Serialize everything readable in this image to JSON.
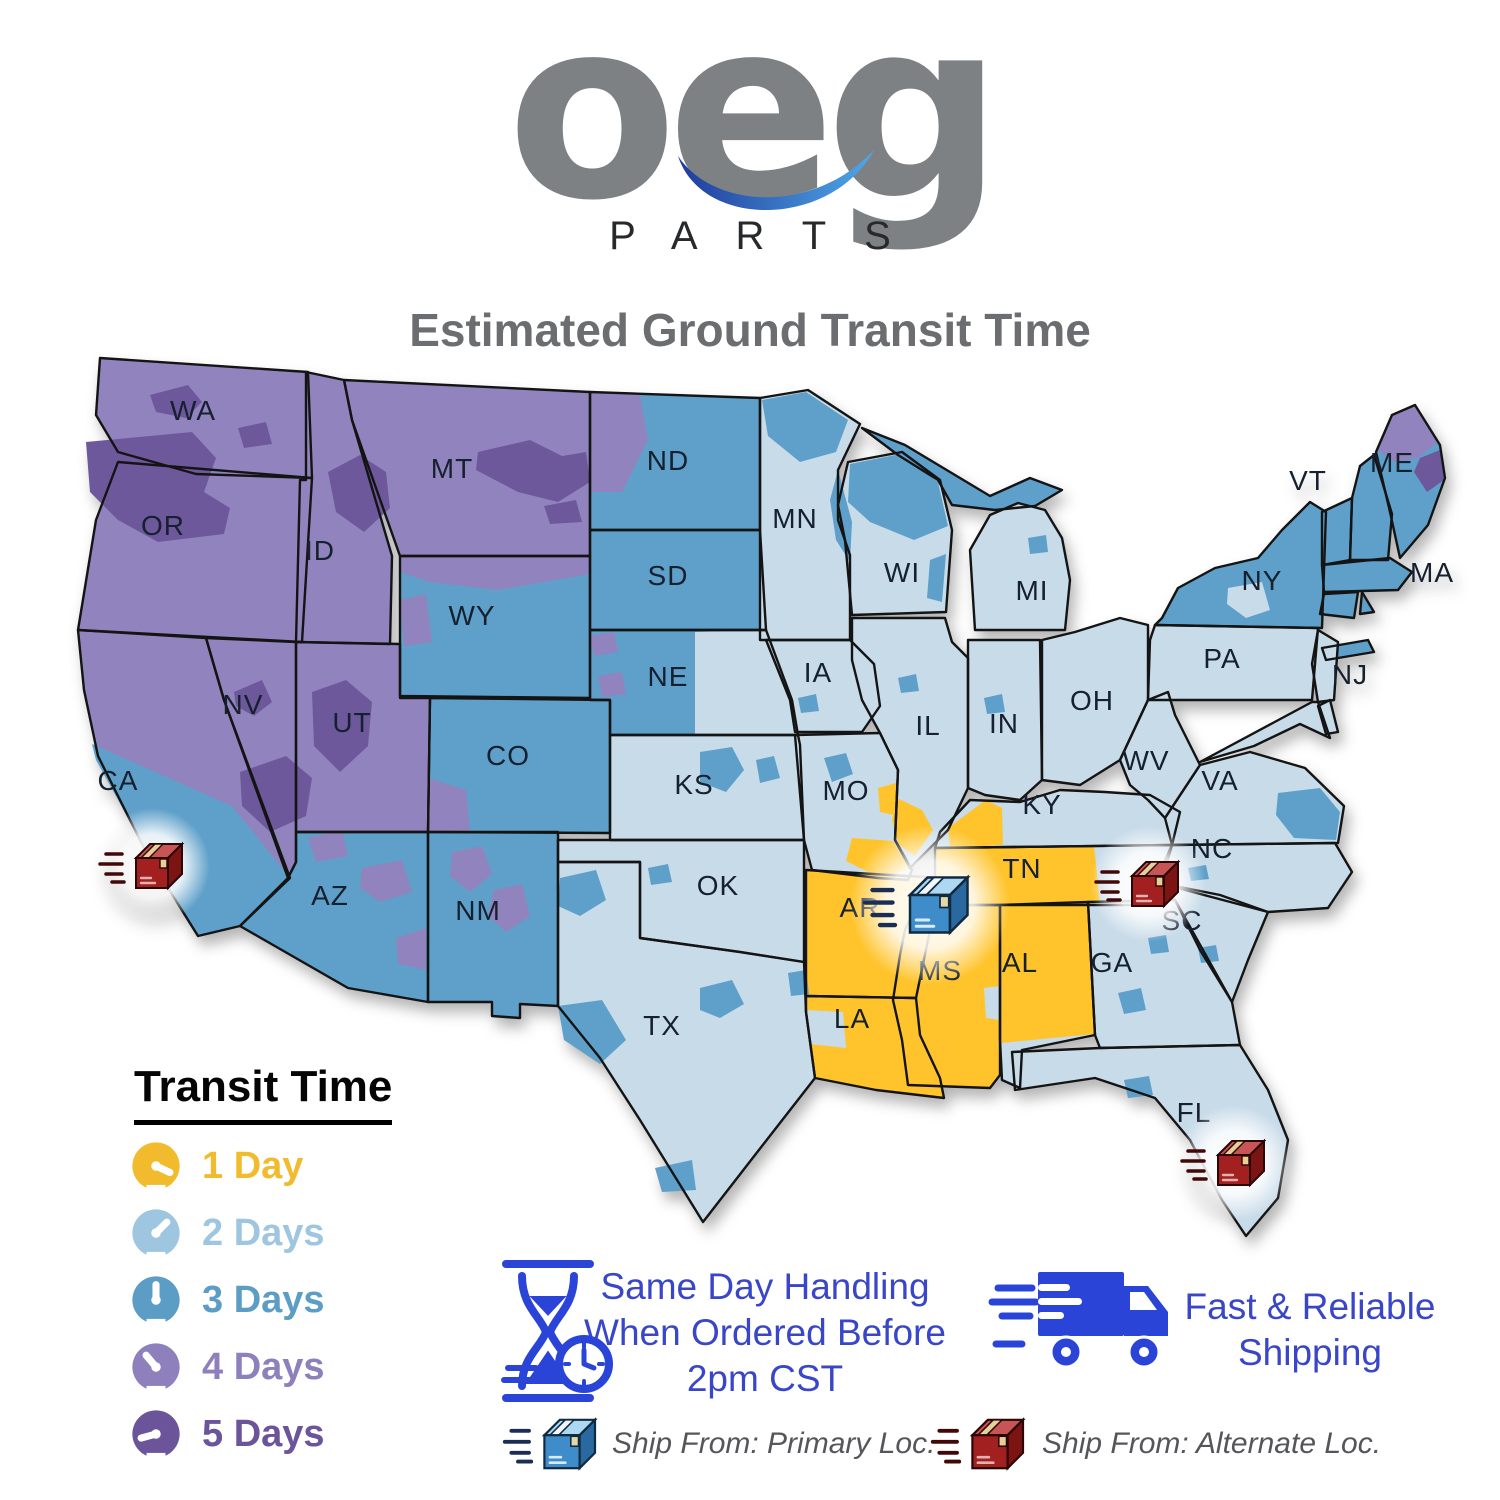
{
  "logo": {
    "brand": "oeg",
    "word": "PARTS"
  },
  "title": "Estimated Ground Transit Time",
  "legend": {
    "title": "Transit Time",
    "items": [
      {
        "label": "1 Day",
        "days": 1,
        "color": "#F2BB2D"
      },
      {
        "label": "2 Days",
        "days": 2,
        "color": "#9FC6E0"
      },
      {
        "label": "3 Days",
        "days": 3,
        "color": "#5C9DC6"
      },
      {
        "label": "4 Days",
        "days": 4,
        "color": "#8E80BC"
      },
      {
        "label": "5 Days",
        "days": 5,
        "color": "#6B5499"
      }
    ]
  },
  "map": {
    "zone_colors": {
      "day1": "#FFC42B",
      "day2": "#C8DBE9",
      "day3": "#5EA0C9",
      "day4": "#9184BE",
      "day5": "#6E589C"
    },
    "states": [
      {
        "code": "WA",
        "label": "WA",
        "transit_days": 4
      },
      {
        "code": "OR",
        "label": "OR",
        "transit_days": 4
      },
      {
        "code": "CA",
        "label": "CA",
        "transit_days": 4
      },
      {
        "code": "NV",
        "label": "NV",
        "transit_days": 4
      },
      {
        "code": "ID",
        "label": "ID",
        "transit_days": 4
      },
      {
        "code": "MT",
        "label": "MT",
        "transit_days": 4
      },
      {
        "code": "UT",
        "label": "UT",
        "transit_days": 4
      },
      {
        "code": "WY",
        "label": "WY",
        "transit_days": 3
      },
      {
        "code": "CO",
        "label": "CO",
        "transit_days": 3
      },
      {
        "code": "AZ",
        "label": "AZ",
        "transit_days": 3
      },
      {
        "code": "NM",
        "label": "NM",
        "transit_days": 3
      },
      {
        "code": "ND",
        "label": "ND",
        "transit_days": 3
      },
      {
        "code": "SD",
        "label": "SD",
        "transit_days": 3
      },
      {
        "code": "NE",
        "label": "NE",
        "transit_days": 3
      },
      {
        "code": "KS",
        "label": "KS",
        "transit_days": 2
      },
      {
        "code": "OK",
        "label": "OK",
        "transit_days": 2
      },
      {
        "code": "TX",
        "label": "TX",
        "transit_days": 2
      },
      {
        "code": "MN",
        "label": "MN",
        "transit_days": 2
      },
      {
        "code": "IA",
        "label": "IA",
        "transit_days": 2
      },
      {
        "code": "MO",
        "label": "MO",
        "transit_days": 2
      },
      {
        "code": "WI",
        "label": "WI",
        "transit_days": 2
      },
      {
        "code": "IL",
        "label": "IL",
        "transit_days": 2
      },
      {
        "code": "MI",
        "label": "MI",
        "transit_days": 2
      },
      {
        "code": "IN",
        "label": "IN",
        "transit_days": 2
      },
      {
        "code": "OH",
        "label": "OH",
        "transit_days": 2
      },
      {
        "code": "KY",
        "label": "KY",
        "transit_days": 2
      },
      {
        "code": "WV",
        "label": "WV",
        "transit_days": 2
      },
      {
        "code": "VA",
        "label": "VA",
        "transit_days": 2
      },
      {
        "code": "PA",
        "label": "PA",
        "transit_days": 2
      },
      {
        "code": "NJ",
        "label": "NJ",
        "transit_days": 2
      },
      {
        "code": "NY",
        "label": "NY",
        "transit_days": 3
      },
      {
        "code": "VT",
        "label": "VT",
        "transit_days": 3
      },
      {
        "code": "MA",
        "label": "MA",
        "transit_days": 3
      },
      {
        "code": "ME",
        "label": "ME",
        "transit_days": 3
      },
      {
        "code": "NC",
        "label": "NC",
        "transit_days": 2
      },
      {
        "code": "SC",
        "label": "SC",
        "transit_days": 2
      },
      {
        "code": "GA",
        "label": "GA",
        "transit_days": 2
      },
      {
        "code": "FL",
        "label": "FL",
        "transit_days": 2
      },
      {
        "code": "AR",
        "label": "AR",
        "transit_days": 1
      },
      {
        "code": "LA",
        "label": "LA",
        "transit_days": 1
      },
      {
        "code": "MS",
        "label": "MS",
        "transit_days": 1
      },
      {
        "code": "AL",
        "label": "AL",
        "transit_days": 1
      },
      {
        "code": "TN",
        "label": "TN",
        "transit_days": 1
      }
    ],
    "markers": [
      {
        "type": "primary",
        "icon": "blue-package-icon",
        "area": "AR / TN border"
      },
      {
        "type": "alternate",
        "icon": "red-package-icon",
        "area": "Southern California"
      },
      {
        "type": "alternate",
        "icon": "red-package-icon",
        "area": "NC / SC border"
      },
      {
        "type": "alternate",
        "icon": "red-package-icon",
        "area": "South Florida"
      }
    ]
  },
  "footer": {
    "same_day": {
      "icon": "hourglass-clock-icon",
      "lines": [
        "Same Day Handling",
        "When Ordered Before",
        "2pm CST"
      ]
    },
    "shipping": {
      "icon": "delivery-truck-icon",
      "lines": [
        "Fast & Reliable",
        "Shipping"
      ]
    },
    "ship_from": [
      {
        "icon": "blue-package-icon",
        "label": "Ship From: Primary Loc."
      },
      {
        "icon": "red-package-icon",
        "label": "Ship From: Alternate Loc."
      }
    ]
  },
  "colors": {
    "accent_blue": "#3946C8",
    "icon_blue": "#2B44D8",
    "text_gray": "#55565A",
    "title_gray": "#6B6D70",
    "logo_gray": "#7E8184"
  }
}
